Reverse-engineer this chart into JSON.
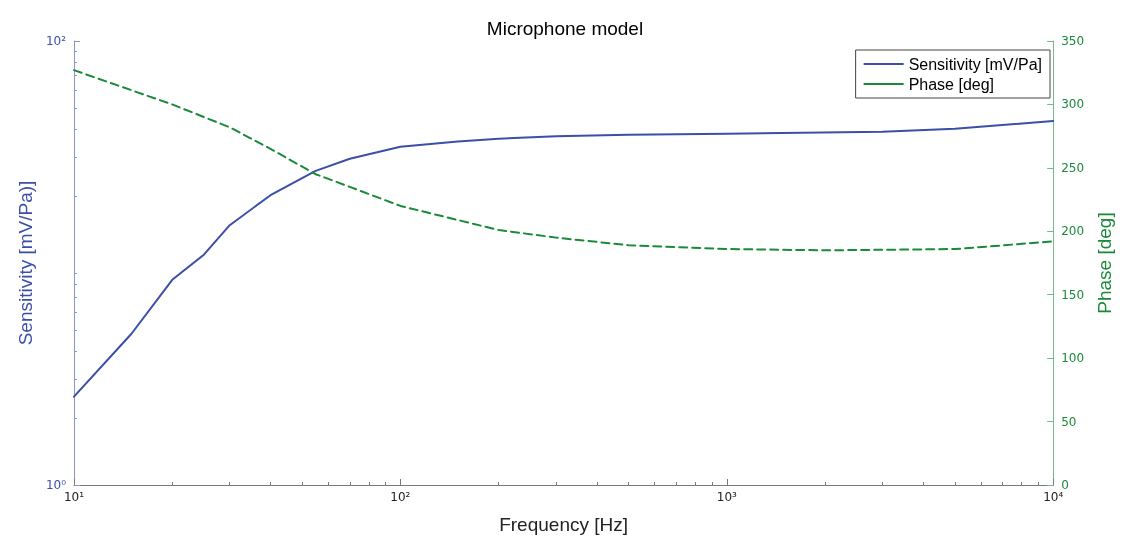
{
  "chart_data": {
    "type": "line",
    "title": "Microphone model",
    "xlabel": "Frequency [Hz]",
    "ylabel": "Sensitivity [mV/Pa)]",
    "y2label": "Phase [deg]",
    "log": "xy",
    "grid": false,
    "legend": "top right",
    "marker": "none",
    "xlim": [
      10,
      10000
    ],
    "xticks": [
      {
        "value": 10,
        "label": "10¹"
      },
      {
        "value": 100,
        "label": "10²"
      },
      {
        "value": 1000,
        "label": "10³"
      },
      {
        "value": 10000,
        "label": "10⁴"
      }
    ],
    "ylim": [
      1,
      100
    ],
    "yticks": [
      {
        "value": 1,
        "label": "10⁰"
      },
      {
        "value": 100,
        "label": "10²"
      }
    ],
    "y2lim": [
      0,
      350
    ],
    "y2ticks": [
      0,
      50,
      100,
      150,
      200,
      250,
      300,
      350
    ],
    "series": [
      {
        "name": "Sensitivity [mV/Pa]",
        "color": "#3b4fa8",
        "line_style": "solid",
        "x": [
          10,
          15,
          20,
          25,
          30,
          40,
          55,
          70,
          100,
          150,
          200,
          300,
          500,
          1000,
          3000,
          5000,
          10000
        ],
        "values": [
          2.5,
          4.8,
          8.4,
          10.9,
          14.8,
          20.2,
          26,
          29.5,
          33.4,
          35.3,
          36.3,
          37.2,
          37.8,
          38.2,
          39,
          40.2,
          43.6
        ]
      },
      {
        "name": "Phase [deg]",
        "color": "#1a8a3a",
        "line_style": "dashed",
        "axis": "y2",
        "x": [
          10,
          20,
          30,
          40,
          55,
          70,
          100,
          200,
          300,
          500,
          1000,
          2000,
          5000,
          10000
        ],
        "values": [
          327,
          300,
          282,
          265,
          245,
          235,
          220,
          201,
          195,
          189,
          186,
          185,
          186,
          192
        ]
      }
    ]
  }
}
